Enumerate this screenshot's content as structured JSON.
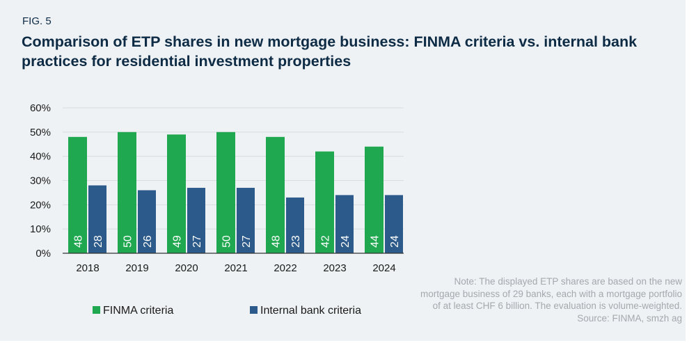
{
  "figure_label": "FIG. 5",
  "chart_data": {
    "type": "bar",
    "title": "Comparison of ETP shares in new mortgage business: FINMA criteria vs. internal bank practices for residential investment properties",
    "categories": [
      "2018",
      "2019",
      "2020",
      "2021",
      "2022",
      "2023",
      "2024"
    ],
    "series": [
      {
        "name": "FINMA criteria",
        "values": [
          48,
          50,
          49,
          50,
          48,
          42,
          44
        ],
        "color": "#1fa84f"
      },
      {
        "name": "Internal bank criteria",
        "values": [
          28,
          26,
          27,
          27,
          23,
          24,
          24
        ],
        "color": "#2c5a8a"
      }
    ],
    "ylim": [
      0,
      60
    ],
    "yticks": [
      "0%",
      "10%",
      "20%",
      "30%",
      "40%",
      "50%",
      "60%"
    ],
    "grid": true,
    "legend": "bottom-left",
    "data_labels": true
  },
  "note": [
    "Note: The displayed ETP shares are based on the new",
    "mortgage business of 29 banks, each with a mortgage portfolio",
    "of at least CHF 6 billion. The evaluation is volume-weighted.",
    "Source: FINMA, smzh ag"
  ]
}
